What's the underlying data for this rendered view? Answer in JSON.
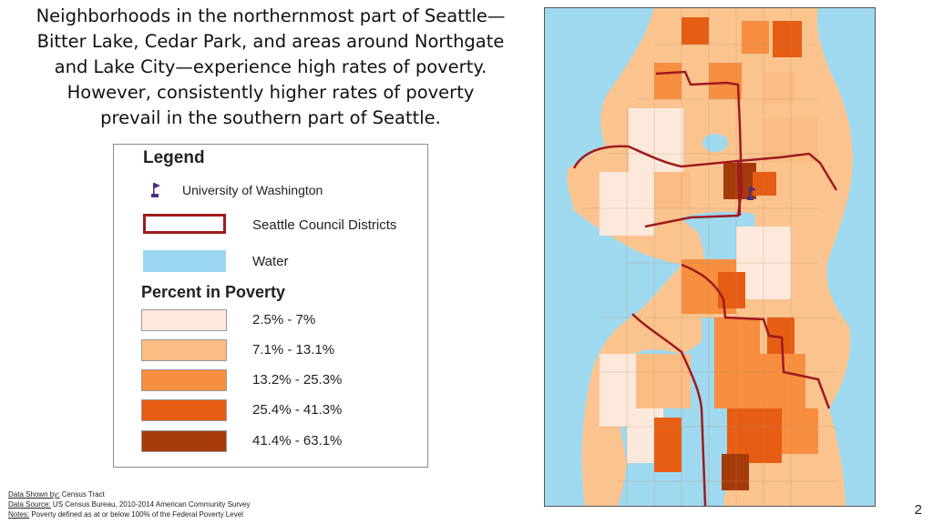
{
  "headline": {
    "line1": "Neighborhoods in the northernmost part of Seattle—",
    "line2": "Bitter Lake, Cedar Park, and areas around Northgate",
    "line3": "and Lake City—experience high rates of poverty.",
    "line4": "However, consistently higher rates of poverty",
    "line5": "prevail in the southern part of Seattle."
  },
  "legend": {
    "title": "Legend",
    "uw_label": "University of Washington",
    "council_label": "Seattle Council Districts",
    "water_label": "Water",
    "poverty_title": "Percent in Poverty",
    "classes": [
      {
        "label": "2.5% - 7%",
        "color": "#fde9dc"
      },
      {
        "label": "7.1% - 13.1%",
        "color": "#fbbd84"
      },
      {
        "label": "13.2% - 25.3%",
        "color": "#f88e3f"
      },
      {
        "label": "25.4% - 41.3%",
        "color": "#e65d14"
      },
      {
        "label": "41.4% - 63.1%",
        "color": "#a53a0b"
      }
    ]
  },
  "colors": {
    "water": "#9bd7ef",
    "council_outline": "#9e1a1f",
    "uw_marker": "#4b2e83"
  },
  "footnotes": {
    "shown_key": "Data Shown by:",
    "shown_val": " Census Tract",
    "source_key": "Data Source:",
    "source_val": " US Census Bureau, 2010-2014 American Community Survey",
    "notes_key": "Notes:",
    "notes_val": " Poverty defined as at or below 100% of the Federal Poverty Level"
  },
  "page_number": "2"
}
